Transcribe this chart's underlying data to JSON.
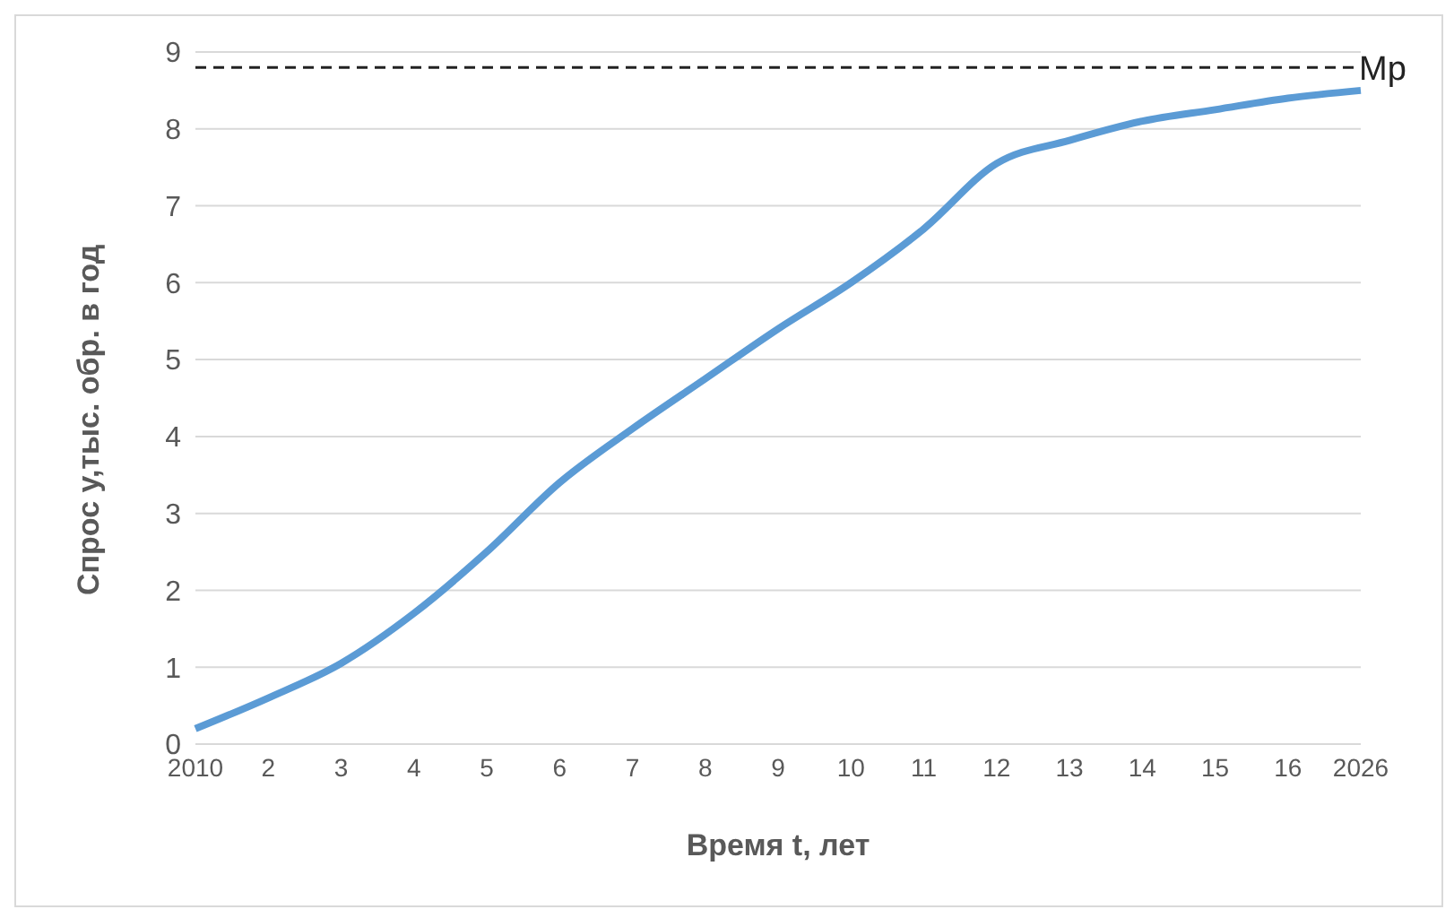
{
  "chart_data": {
    "type": "line",
    "xlabel": "Время t, лет",
    "ylabel": "Спрос y,тыс. обр. в год",
    "categories": [
      "2010",
      "2",
      "3",
      "4",
      "5",
      "6",
      "7",
      "8",
      "9",
      "10",
      "11",
      "12",
      "13",
      "14",
      "15",
      "16",
      "2026"
    ],
    "series": [
      {
        "color": "#5b9bd5",
        "values": [
          0.2,
          0.6,
          1.05,
          1.7,
          2.5,
          3.4,
          4.1,
          4.75,
          5.4,
          6.0,
          6.7,
          7.55,
          7.85,
          8.1,
          8.25,
          8.4,
          8.5
        ]
      }
    ],
    "ylim": [
      0,
      9
    ],
    "yticks": [
      0,
      1,
      2,
      3,
      4,
      5,
      6,
      7,
      8,
      9
    ],
    "grid": "y",
    "legend": false,
    "marker": "none",
    "line_style": "solid",
    "ref_lines": [
      {
        "axis": "y",
        "value": 8.8,
        "label": "Mp",
        "color": "#222222",
        "line_style": "dashed"
      }
    ]
  }
}
